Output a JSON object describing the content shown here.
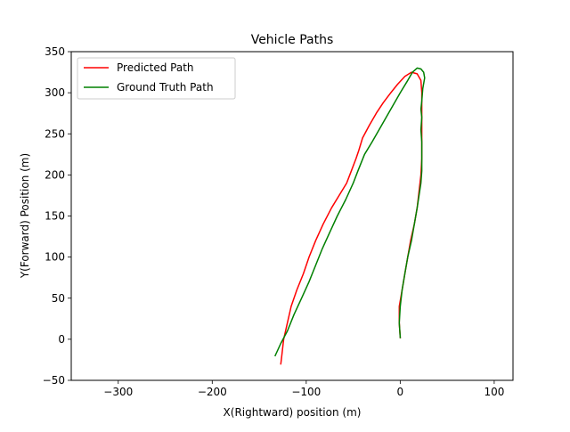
{
  "chart_data": {
    "type": "line",
    "title": "Vehicle Paths",
    "xlabel": "X(Rightward) position (m)",
    "ylabel": "Y(Forward) Position (m)",
    "xlim": [
      -350,
      120
    ],
    "ylim": [
      -50,
      350
    ],
    "xticks": [
      -300,
      -200,
      -100,
      0,
      100
    ],
    "yticks": [
      -50,
      0,
      50,
      100,
      150,
      200,
      250,
      300,
      350
    ],
    "xtick_labels": [
      "−300",
      "−200",
      "−100",
      "0",
      "100"
    ],
    "ytick_labels": [
      "−50",
      "0",
      "50",
      "100",
      "150",
      "200",
      "250",
      "300",
      "350"
    ],
    "grid": false,
    "legend_position": "top-left",
    "series": [
      {
        "name": "Predicted Path",
        "color": "#ff0000",
        "points": [
          [
            0,
            2
          ],
          [
            -1,
            20
          ],
          [
            -1,
            40
          ],
          [
            2,
            60
          ],
          [
            5,
            80
          ],
          [
            8,
            100
          ],
          [
            11,
            120
          ],
          [
            15,
            140
          ],
          [
            18,
            160
          ],
          [
            20,
            180
          ],
          [
            22,
            200
          ],
          [
            23,
            220
          ],
          [
            23,
            240
          ],
          [
            23,
            260
          ],
          [
            23,
            280
          ],
          [
            23,
            300
          ],
          [
            22,
            315
          ],
          [
            18,
            323
          ],
          [
            12,
            325
          ],
          [
            5,
            320
          ],
          [
            -3,
            310
          ],
          [
            -10,
            300
          ],
          [
            -18,
            288
          ],
          [
            -25,
            276
          ],
          [
            -33,
            260
          ],
          [
            -40,
            245
          ],
          [
            -44,
            230
          ],
          [
            -47,
            220
          ],
          [
            -52,
            205
          ],
          [
            -57,
            190
          ],
          [
            -65,
            175
          ],
          [
            -73,
            160
          ],
          [
            -82,
            140
          ],
          [
            -90,
            120
          ],
          [
            -97,
            100
          ],
          [
            -103,
            80
          ],
          [
            -110,
            60
          ],
          [
            -116,
            40
          ],
          [
            -120,
            20
          ],
          [
            -124,
            0
          ],
          [
            -126,
            -20
          ],
          [
            -127,
            -30
          ]
        ]
      },
      {
        "name": "Ground Truth Path",
        "color": "#008000",
        "points": [
          [
            -133,
            -20
          ],
          [
            -127,
            -5
          ],
          [
            -120,
            10
          ],
          [
            -113,
            30
          ],
          [
            -105,
            50
          ],
          [
            -97,
            70
          ],
          [
            -90,
            90
          ],
          [
            -83,
            110
          ],
          [
            -75,
            130
          ],
          [
            -67,
            150
          ],
          [
            -58,
            170
          ],
          [
            -50,
            190
          ],
          [
            -45,
            205
          ],
          [
            -38,
            225
          ],
          [
            -30,
            240
          ],
          [
            -20,
            260
          ],
          [
            -10,
            280
          ],
          [
            0,
            300
          ],
          [
            8,
            315
          ],
          [
            13,
            325
          ],
          [
            18,
            330
          ],
          [
            22,
            329
          ],
          [
            25,
            325
          ],
          [
            26,
            318
          ],
          [
            24,
            305
          ],
          [
            23,
            290
          ],
          [
            22,
            280
          ],
          [
            23,
            270
          ],
          [
            22,
            255
          ],
          [
            23,
            240
          ],
          [
            23,
            225
          ],
          [
            23,
            205
          ],
          [
            22,
            190
          ],
          [
            20,
            175
          ],
          [
            18,
            160
          ],
          [
            15,
            140
          ],
          [
            12,
            120
          ],
          [
            8,
            100
          ],
          [
            5,
            80
          ],
          [
            2,
            60
          ],
          [
            0,
            40
          ],
          [
            -1,
            20
          ],
          [
            0,
            2
          ]
        ]
      }
    ]
  }
}
